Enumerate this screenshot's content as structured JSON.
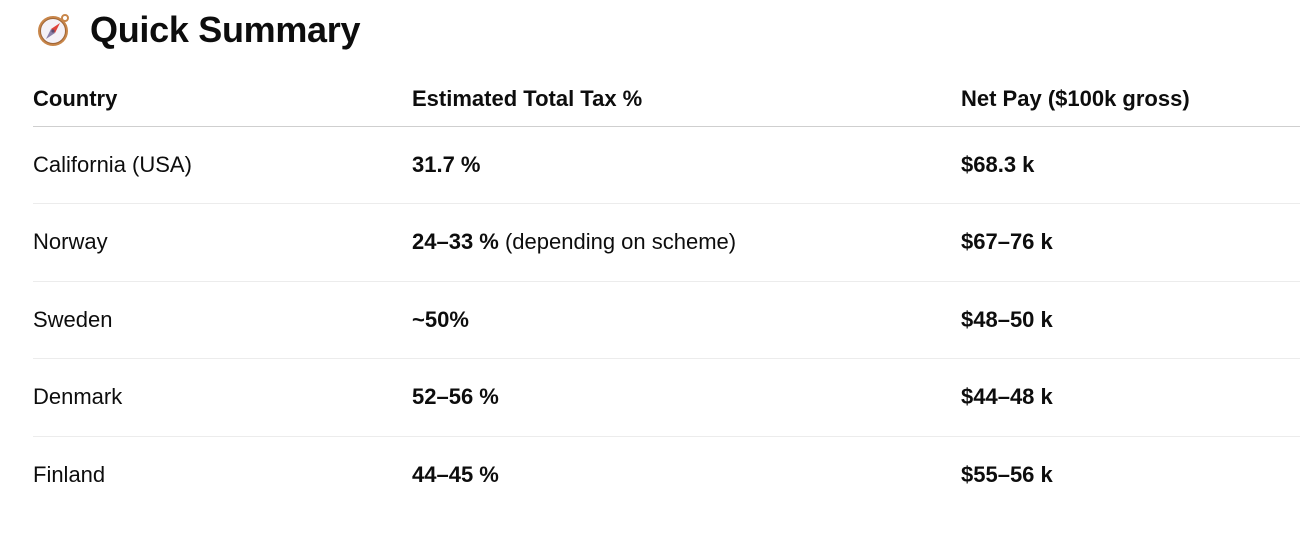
{
  "heading": {
    "icon": "compass-icon",
    "title": "Quick Summary"
  },
  "table": {
    "headers": [
      "Country",
      "Estimated Total Tax %",
      "Net Pay ($100k gross)"
    ],
    "rows": [
      {
        "country": "California (USA)",
        "tax": "31.7 %",
        "tax_note": "",
        "net": "$68.3 k"
      },
      {
        "country": "Norway",
        "tax": "24–33 %",
        "tax_note": " (depending on scheme)",
        "net": "$67–76 k"
      },
      {
        "country": "Sweden",
        "tax": "~50%",
        "tax_note": "",
        "net": "$48–50 k"
      },
      {
        "country": "Denmark",
        "tax": "52–56 %",
        "tax_note": "",
        "net": "$44–48 k"
      },
      {
        "country": "Finland",
        "tax": "44–45 %",
        "tax_note": "",
        "net": "$55–56 k"
      }
    ]
  }
}
